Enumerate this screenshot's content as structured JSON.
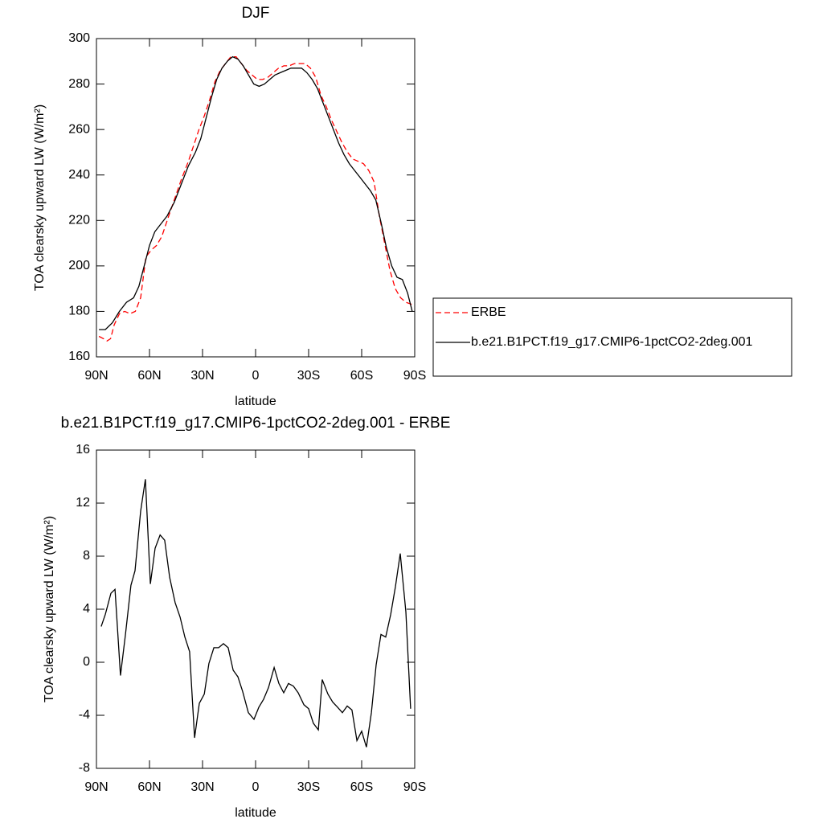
{
  "chart_data": [
    {
      "type": "line",
      "title": "DJF",
      "xlabel": "latitude",
      "ylabel": "TOA clearsky upward LW (W/m²)",
      "xlim": [
        90,
        -90
      ],
      "xticks": [
        {
          "value": 90,
          "label": "90N"
        },
        {
          "value": 60,
          "label": "60N"
        },
        {
          "value": 30,
          "label": "30N"
        },
        0,
        {
          "value": -30,
          "label": "30S"
        },
        {
          "value": -60,
          "label": "60S"
        },
        {
          "value": -90,
          "label": "90S"
        }
      ],
      "ylim": [
        160,
        300
      ],
      "yticks": [
        160,
        180,
        200,
        220,
        240,
        260,
        280,
        300
      ],
      "legend": "right",
      "series": [
        {
          "name": "ERBE",
          "color": "#ff0000",
          "dashed": true,
          "x": [
            88.6,
            86,
            84,
            82,
            80,
            77,
            74,
            71,
            68,
            65,
            62,
            59,
            56,
            53,
            50,
            46,
            42,
            38,
            35,
            32,
            29,
            26,
            23,
            20,
            17,
            14,
            11,
            8,
            5,
            2,
            -1,
            -4,
            -7,
            -10,
            -13,
            -16,
            -19,
            -22,
            -25,
            -28,
            -31,
            -34,
            -37,
            -40,
            -43,
            -46,
            -49,
            -52,
            -55,
            -58,
            -61,
            -64,
            -67,
            -70,
            -73,
            -76,
            -79,
            -82,
            -85,
            -88.6
          ],
          "values": [
            169,
            168,
            167,
            168,
            174,
            179,
            180,
            179,
            180,
            186,
            204,
            207,
            209,
            213,
            220,
            229,
            238,
            246,
            253,
            260,
            266,
            273,
            281,
            286,
            289,
            292,
            292,
            289,
            286,
            284,
            282,
            282,
            283,
            285,
            287,
            288,
            288,
            289,
            289,
            289,
            287,
            283,
            275,
            270,
            264,
            259,
            254,
            250,
            247,
            246,
            245,
            242,
            237,
            222,
            210,
            198,
            190,
            186,
            184,
            183
          ]
        },
        {
          "name": "b.e21.B1PCT.f19_g17.CMIP6-1pctCO2-2deg.001",
          "color": "#000000",
          "dashed": false,
          "x": [
            88.6,
            85,
            81,
            77,
            73,
            69,
            66,
            63,
            60,
            57,
            54,
            50,
            46,
            42,
            38,
            34,
            31,
            28,
            25,
            22,
            19,
            16,
            13,
            10,
            7,
            4,
            1,
            -2,
            -5,
            -8,
            -11,
            -14,
            -17,
            -20,
            -23,
            -26,
            -29,
            -32,
            -35,
            -38,
            -41,
            -44,
            -47,
            -50,
            -53,
            -56,
            -59,
            -62,
            -65,
            -68,
            -71,
            -74,
            -77,
            -80,
            -83,
            -86,
            -88.6
          ],
          "values": [
            172,
            172,
            175,
            180,
            184,
            186,
            191,
            200,
            209,
            215,
            218,
            222,
            228,
            236,
            244,
            250,
            256,
            265,
            274,
            282,
            287,
            290,
            292,
            291,
            288,
            284,
            280,
            279,
            280,
            282,
            284,
            285,
            286,
            287,
            287,
            287,
            285,
            282,
            278,
            272,
            266,
            260,
            254,
            249,
            245,
            242,
            239,
            236,
            233,
            229,
            219,
            208,
            200,
            195,
            194,
            188,
            180
          ]
        }
      ]
    },
    {
      "type": "line",
      "title": "b.e21.B1PCT.f19_g17.CMIP6-1pctCO2-2deg.001 - ERBE",
      "xlabel": "latitude",
      "ylabel": "TOA clearsky upward LW (W/m²)",
      "xlim": [
        90,
        -90
      ],
      "xticks": [
        {
          "value": 90,
          "label": "90N"
        },
        {
          "value": 60,
          "label": "60N"
        },
        {
          "value": 30,
          "label": "30N"
        },
        0,
        {
          "value": -30,
          "label": "30S"
        },
        {
          "value": -60,
          "label": "60S"
        },
        {
          "value": -90,
          "label": "90S"
        }
      ],
      "ylim": [
        -8,
        16
      ],
      "yticks": [
        -8,
        -4,
        0,
        4,
        8,
        12,
        16
      ],
      "color": "#000000",
      "x": [
        87.3,
        85,
        81.8,
        79.5,
        76.4,
        73.6,
        70.5,
        68.2,
        65,
        62.3,
        59.5,
        56.8,
        54,
        51.4,
        48.6,
        45.5,
        42.7,
        40,
        37.3,
        34.5,
        31.8,
        29,
        26.4,
        23.6,
        20.9,
        18.2,
        15.5,
        12.7,
        10,
        7.3,
        4.1,
        0.9,
        -1.8,
        -4.5,
        -7.3,
        -10.5,
        -13.2,
        -15.9,
        -18.6,
        -21.4,
        -24.1,
        -27.3,
        -30,
        -32.7,
        -35.5,
        -37.7,
        -40.9,
        -43.6,
        -46.4,
        -49.1,
        -51.8,
        -54.5,
        -57.3,
        -60,
        -62.7,
        -65.5,
        -68.2,
        -70.9,
        -73.6,
        -76.4,
        -79.1,
        -81.8,
        -85,
        -87.7
      ],
      "values": [
        2.7,
        3.6,
        5.2,
        5.5,
        -1,
        2.1,
        5.8,
        6.9,
        11.4,
        13.8,
        5.9,
        8.6,
        9.6,
        9.2,
        6.4,
        4.5,
        3.4,
        1.9,
        0.8,
        -5.7,
        -3.1,
        -2.4,
        -0.1,
        1.1,
        1.1,
        1.4,
        1.1,
        -0.6,
        -1.1,
        -2.2,
        -3.8,
        -4.3,
        -3.4,
        -2.8,
        -1.9,
        -0.4,
        -1.6,
        -2.3,
        -1.6,
        -1.8,
        -2.3,
        -3.2,
        -3.5,
        -4.6,
        -5.1,
        -1.3,
        -2.4,
        -3,
        -3.4,
        -3.8,
        -3.3,
        -3.6,
        -5.9,
        -5.2,
        -6.4,
        -3.8,
        -0.2,
        2.1,
        1.9,
        3.6,
        5.7,
        8.2,
        3.8,
        -3.5
      ]
    }
  ]
}
